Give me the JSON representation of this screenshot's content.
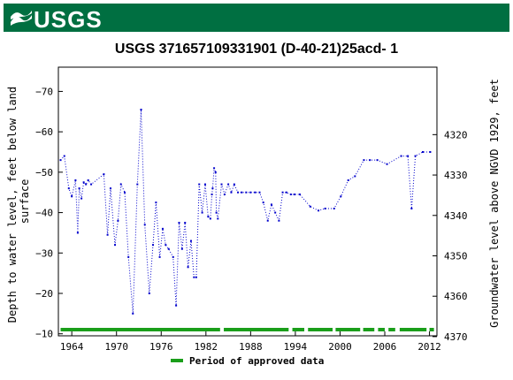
{
  "header": {
    "logo_text": "USGS",
    "logo_icon": "usgs-wave-icon",
    "banner_color": "#006f41"
  },
  "colors": {
    "series": "#0000cc",
    "approved": "#1a9e1a"
  },
  "chart_data": {
    "type": "line",
    "title": "USGS 371657109331901  (D-40-21)25acd- 1",
    "ylabel": "Depth to water level, feet below land surface",
    "y2label": "Groundwater level above NGVD 1929, feet",
    "xlim": [
      1962.2,
      2013.0
    ],
    "ylim": [
      -76,
      -9.5
    ],
    "y_inverted": true,
    "xticks": [
      1964,
      1970,
      1976,
      1982,
      1988,
      1994,
      2000,
      2006,
      2012
    ],
    "yticks": [
      -70,
      -60,
      -50,
      -40,
      -30,
      -20,
      -10
    ],
    "y2_offset": 4379.3,
    "y2ticks": [
      4370,
      4360,
      4350,
      4340,
      4330,
      4320
    ],
    "grid": false,
    "series": [
      {
        "x": [
          1962.5,
          1963.0,
          1963.6,
          1964.0,
          1964.5,
          1964.8,
          1965.0,
          1965.3,
          1965.6,
          1965.9,
          1966.2,
          1966.6,
          1968.3,
          1968.8,
          1969.2,
          1969.8,
          1970.2,
          1970.6,
          1971.1,
          1971.6,
          1972.2,
          1972.8,
          1973.3,
          1973.8,
          1974.4,
          1974.9,
          1975.3,
          1975.8,
          1976.2,
          1976.6,
          1977.0,
          1977.6,
          1978.0,
          1978.4,
          1978.8,
          1979.2,
          1979.6,
          1980.0,
          1980.4,
          1980.7,
          1981.1,
          1981.5,
          1981.9,
          1982.3,
          1982.6,
          1982.8,
          1982.9,
          1983.1,
          1983.3,
          1983.4,
          1983.6,
          1984.1,
          1984.5,
          1985.0,
          1985.4,
          1985.8,
          1986.3,
          1986.8,
          1987.4,
          1988.0,
          1988.6,
          1989.2,
          1989.7,
          1990.3,
          1990.8,
          1991.3,
          1991.8,
          1992.3,
          1992.8,
          1993.4,
          1993.9,
          1994.6,
          1996.0,
          1997.1,
          1998.0,
          1999.2,
          2000.1,
          2001.1,
          2002.0,
          2003.2,
          2004.0,
          2005.0,
          2006.3,
          2008.2,
          2009.1,
          2009.6,
          2010.1,
          2011.1,
          2012.1
        ],
        "y": [
          -53,
          -54,
          -46,
          -44,
          -48,
          -35,
          -46,
          -43.5,
          -47.5,
          -47,
          -48,
          -47,
          -49.5,
          -34.5,
          -46,
          -32,
          -38,
          -47,
          -45,
          -29,
          -15,
          -47,
          -65.5,
          -37,
          -20,
          -32,
          -42.5,
          -29,
          -36,
          -32,
          -31,
          -29,
          -17,
          -37.5,
          -31,
          -37.5,
          -26.5,
          -33,
          -24,
          -24,
          -47,
          -40,
          -47,
          -39,
          -38.5,
          -44.5,
          -46,
          -51,
          -50,
          -40,
          -38.5,
          -47,
          -44.5,
          -47,
          -45,
          -47,
          -45,
          -45,
          -45,
          -45,
          -45,
          -45,
          -42.5,
          -38,
          -42,
          -40,
          -38,
          -45,
          -45,
          -44.5,
          -44.5,
          -44.5,
          -41.5,
          -40.5,
          -41,
          -41,
          -44,
          -48,
          -49,
          -53,
          -53,
          -53,
          -52,
          -54,
          -54,
          -41,
          -54,
          -55,
          -55
        ]
      }
    ],
    "approved_periods": [
      [
        1962.5,
        1983.9
      ],
      [
        1984.4,
        1993.1
      ],
      [
        1993.6,
        1995.2
      ],
      [
        1995.7,
        1999.0
      ],
      [
        1999.4,
        2002.7
      ],
      [
        2003.1,
        2004.6
      ],
      [
        2005.1,
        2006.0
      ],
      [
        2006.5,
        2007.4
      ],
      [
        2008.0,
        2011.6
      ],
      [
        2012.0,
        2012.6
      ]
    ],
    "legend": {
      "label": "Period of approved data",
      "placement": "bottom-center"
    }
  }
}
